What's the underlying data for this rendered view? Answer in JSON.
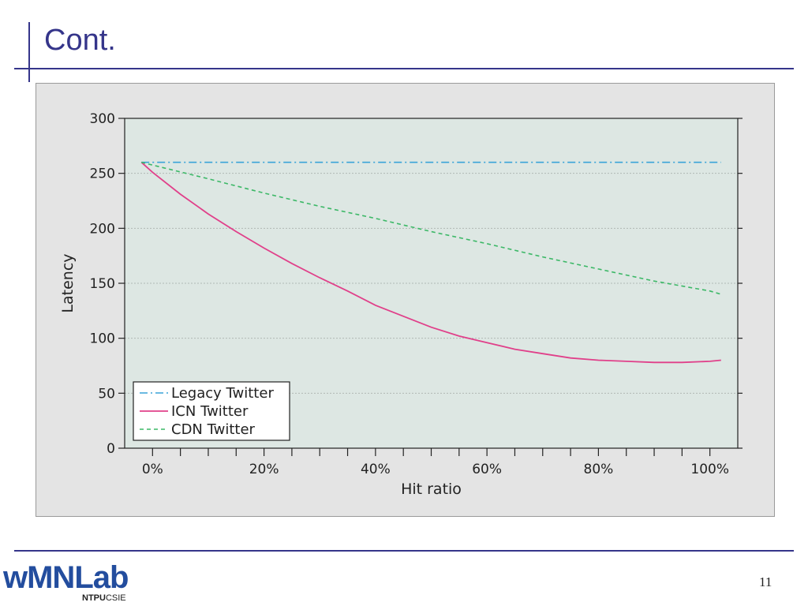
{
  "slide": {
    "title": "Cont.",
    "page_number": "11"
  },
  "logo": {
    "main": "wMNLab",
    "sub_bold": "NTPU",
    "sub_normal": "CSIE"
  },
  "colors": {
    "accent": "#35358a",
    "plot_bg": "#dde7e3",
    "legacy": "#3aa4d8",
    "icn": "#e0408a",
    "cdn": "#3cb867"
  },
  "chart_data": {
    "type": "line",
    "xlabel": "Hit ratio",
    "ylabel": "Latency",
    "xlim": [
      -5,
      105
    ],
    "ylim": [
      0,
      300
    ],
    "x_ticks": [
      "0%",
      "20%",
      "40%",
      "60%",
      "80%",
      "100%"
    ],
    "x_tick_values": [
      0,
      20,
      40,
      60,
      80,
      100
    ],
    "y_ticks": [
      "0",
      "50",
      "100",
      "150",
      "200",
      "250",
      "300"
    ],
    "y_tick_values": [
      0,
      50,
      100,
      150,
      200,
      250,
      300
    ],
    "grid": "horizontal",
    "legend_position": "bottom-left",
    "series": [
      {
        "name": "Legacy Twitter",
        "style": "dashdot",
        "x": [
          -2,
          10,
          20,
          30,
          40,
          50,
          60,
          70,
          80,
          90,
          100,
          102
        ],
        "y": [
          260,
          260,
          260,
          260,
          260,
          260,
          260,
          260,
          260,
          260,
          260,
          260
        ]
      },
      {
        "name": "ICN Twitter",
        "style": "solid",
        "x": [
          -2,
          0,
          5,
          10,
          15,
          20,
          25,
          30,
          35,
          40,
          45,
          50,
          55,
          60,
          65,
          70,
          75,
          80,
          85,
          90,
          95,
          100,
          102
        ],
        "y": [
          260,
          251,
          231,
          213,
          197,
          182,
          168,
          155,
          143,
          130,
          120,
          110,
          102,
          96,
          90,
          86,
          82,
          80,
          79,
          78,
          78,
          79,
          80
        ]
      },
      {
        "name": "CDN Twitter",
        "style": "dashed",
        "x": [
          -2,
          10,
          20,
          30,
          40,
          50,
          60,
          70,
          80,
          90,
          100,
          102
        ],
        "y": [
          260,
          245,
          232,
          220,
          209,
          197,
          186,
          174,
          163,
          152,
          143,
          140
        ]
      }
    ]
  }
}
